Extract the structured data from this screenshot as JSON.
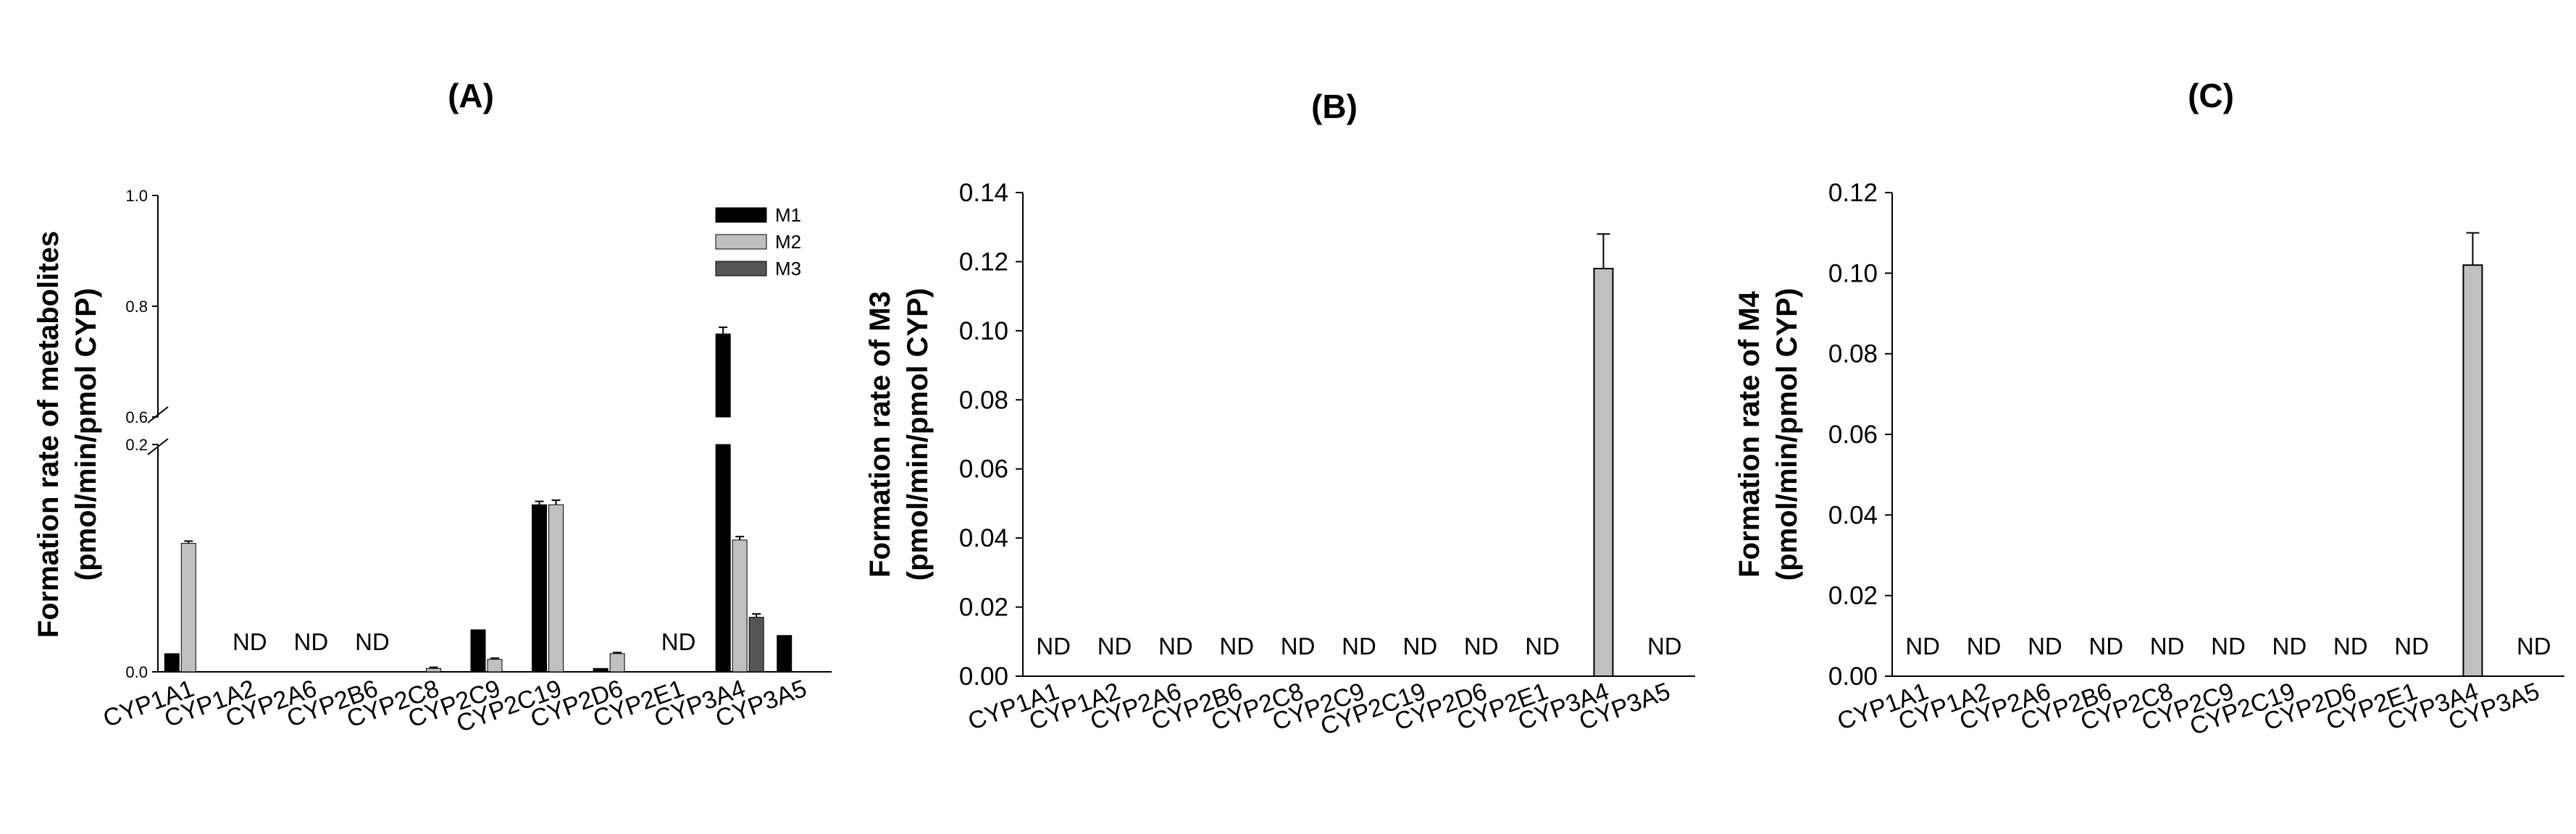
{
  "chart_data": [
    {
      "type": "bar",
      "title": "(A)",
      "ylabel": [
        "Formation rate of metabolites",
        "(pmol/min/pmol CYP)"
      ],
      "broken_axis": true,
      "ylim_lower": [
        0,
        0.2
      ],
      "ylim_upper": [
        0.6,
        1.0
      ],
      "y_ticks_lower": [
        "0.0",
        "0.2"
      ],
      "y_ticks_upper": [
        "0.6",
        "0.8",
        "1.0"
      ],
      "categories": [
        "CYP1A1",
        "CYP1A2",
        "CYP2A6",
        "CYP2B6",
        "CYP2C8",
        "CYP2C9",
        "CYP2C19",
        "CYP2D6",
        "CYP2E1",
        "CYP3A4",
        "CYP3A5"
      ],
      "nd_label": "ND",
      "legend_position": "top-right",
      "colors": {
        "M1": "#000000",
        "M2": "#c0c0c0",
        "M3": "#555555"
      },
      "series": [
        {
          "name": "M1",
          "values": [
            0.016,
            0,
            0,
            0,
            0,
            0.037,
            0.147,
            0.003,
            0,
            0.75,
            0.032
          ],
          "errors": [
            0,
            0,
            0,
            0,
            0,
            0,
            0.003,
            0,
            0,
            0.012,
            0
          ]
        },
        {
          "name": "M2",
          "values": [
            0.113,
            0,
            0,
            0,
            0.003,
            0.011,
            0.147,
            0.016,
            0,
            0.116,
            0
          ],
          "errors": [
            0.002,
            0,
            0,
            0,
            0.001,
            0.001,
            0.004,
            0.001,
            0,
            0.003,
            0
          ]
        },
        {
          "name": "M3",
          "values": [
            0,
            0,
            0,
            0,
            0,
            0,
            0,
            0,
            0,
            0.048,
            0
          ],
          "errors": [
            0,
            0,
            0,
            0,
            0,
            0,
            0,
            0,
            0,
            0.003,
            0
          ]
        }
      ],
      "nd": [
        "CYP1A2",
        "CYP2A6",
        "CYP2B6",
        "CYP2E1"
      ]
    },
    {
      "type": "bar",
      "title": "(B)",
      "ylabel": [
        "Formation rate of M3",
        "(pmol/min/pmol CYP)"
      ],
      "ylim": [
        0,
        0.14
      ],
      "y_ticks": [
        "0.00",
        "0.02",
        "0.04",
        "0.06",
        "0.08",
        "0.10",
        "0.12",
        "0.14"
      ],
      "categories": [
        "CYP1A1",
        "CYP1A2",
        "CYP2A6",
        "CYP2B6",
        "CYP2C8",
        "CYP2C9",
        "CYP2C19",
        "CYP2D6",
        "CYP2E1",
        "CYP3A4",
        "CYP3A5"
      ],
      "nd_label": "ND",
      "bar_color": "#c0c0c0",
      "values": [
        0,
        0,
        0,
        0,
        0,
        0,
        0,
        0,
        0,
        0.118,
        0
      ],
      "errors": [
        0,
        0,
        0,
        0,
        0,
        0,
        0,
        0,
        0,
        0.01,
        0
      ],
      "nd": [
        "CYP1A1",
        "CYP1A2",
        "CYP2A6",
        "CYP2B6",
        "CYP2C8",
        "CYP2C9",
        "CYP2C19",
        "CYP2D6",
        "CYP2E1",
        "CYP3A5"
      ]
    },
    {
      "type": "bar",
      "title": "(C)",
      "ylabel": [
        "Formation rate of M4",
        "(pmol/min/pmol CYP)"
      ],
      "ylim": [
        0,
        0.12
      ],
      "y_ticks": [
        "0.00",
        "0.02",
        "0.04",
        "0.06",
        "0.08",
        "0.10",
        "0.12"
      ],
      "categories": [
        "CYP1A1",
        "CYP1A2",
        "CYP2A6",
        "CYP2B6",
        "CYP2C8",
        "CYP2C9",
        "CYP2C19",
        "CYP2D6",
        "CYP2E1",
        "CYP3A4",
        "CYP3A5"
      ],
      "nd_label": "ND",
      "bar_color": "#c0c0c0",
      "values": [
        0,
        0,
        0,
        0,
        0,
        0,
        0,
        0,
        0,
        0.102,
        0
      ],
      "errors": [
        0,
        0,
        0,
        0,
        0,
        0,
        0,
        0,
        0,
        0.008,
        0
      ],
      "nd": [
        "CYP1A1",
        "CYP1A2",
        "CYP2A6",
        "CYP2B6",
        "CYP2C8",
        "CYP2C9",
        "CYP2C19",
        "CYP2D6",
        "CYP2E1",
        "CYP3A5"
      ]
    }
  ]
}
